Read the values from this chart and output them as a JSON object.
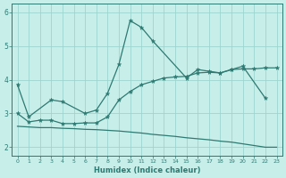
{
  "xlabel": "Humidex (Indice chaleur)",
  "color": "#2d7a72",
  "bg_color": "#c8eeea",
  "grid_color": "#9ed4ce",
  "ylim": [
    1.75,
    6.25
  ],
  "xlim": [
    -0.5,
    23.5
  ],
  "yticks": [
    2,
    3,
    4,
    5,
    6
  ],
  "xticks": [
    0,
    1,
    2,
    3,
    4,
    5,
    6,
    7,
    8,
    9,
    10,
    11,
    12,
    13,
    14,
    15,
    16,
    17,
    18,
    19,
    20,
    21,
    22,
    23
  ],
  "upper_x": [
    0,
    1,
    3,
    4,
    6,
    7,
    8,
    9,
    10,
    11,
    12,
    15,
    16,
    17,
    18,
    19,
    20,
    22
  ],
  "upper_y": [
    3.85,
    2.9,
    3.4,
    3.35,
    3.0,
    3.1,
    3.6,
    4.45,
    5.75,
    5.55,
    5.15,
    4.05,
    4.3,
    4.25,
    4.2,
    4.3,
    4.4,
    3.45
  ],
  "mid_x": [
    0,
    1,
    2,
    3,
    4,
    5,
    6,
    7,
    8,
    9,
    10,
    11,
    12,
    13,
    14,
    15,
    16,
    17,
    18,
    19,
    20,
    21,
    22,
    23
  ],
  "mid_y": [
    3.0,
    2.75,
    2.8,
    2.8,
    2.7,
    2.7,
    2.72,
    2.72,
    2.9,
    3.4,
    3.65,
    3.85,
    3.95,
    4.05,
    4.08,
    4.1,
    4.2,
    4.22,
    4.2,
    4.3,
    4.32,
    4.32,
    4.35,
    4.35
  ],
  "low_x": [
    0,
    1,
    2,
    3,
    4,
    5,
    6,
    7,
    8,
    9,
    10,
    11,
    12,
    13,
    14,
    15,
    16,
    17,
    18,
    19,
    20,
    21,
    22,
    23
  ],
  "low_y": [
    2.62,
    2.6,
    2.58,
    2.58,
    2.56,
    2.55,
    2.53,
    2.52,
    2.5,
    2.48,
    2.45,
    2.42,
    2.38,
    2.35,
    2.32,
    2.28,
    2.25,
    2.22,
    2.18,
    2.15,
    2.1,
    2.05,
    2.0,
    2.0
  ]
}
